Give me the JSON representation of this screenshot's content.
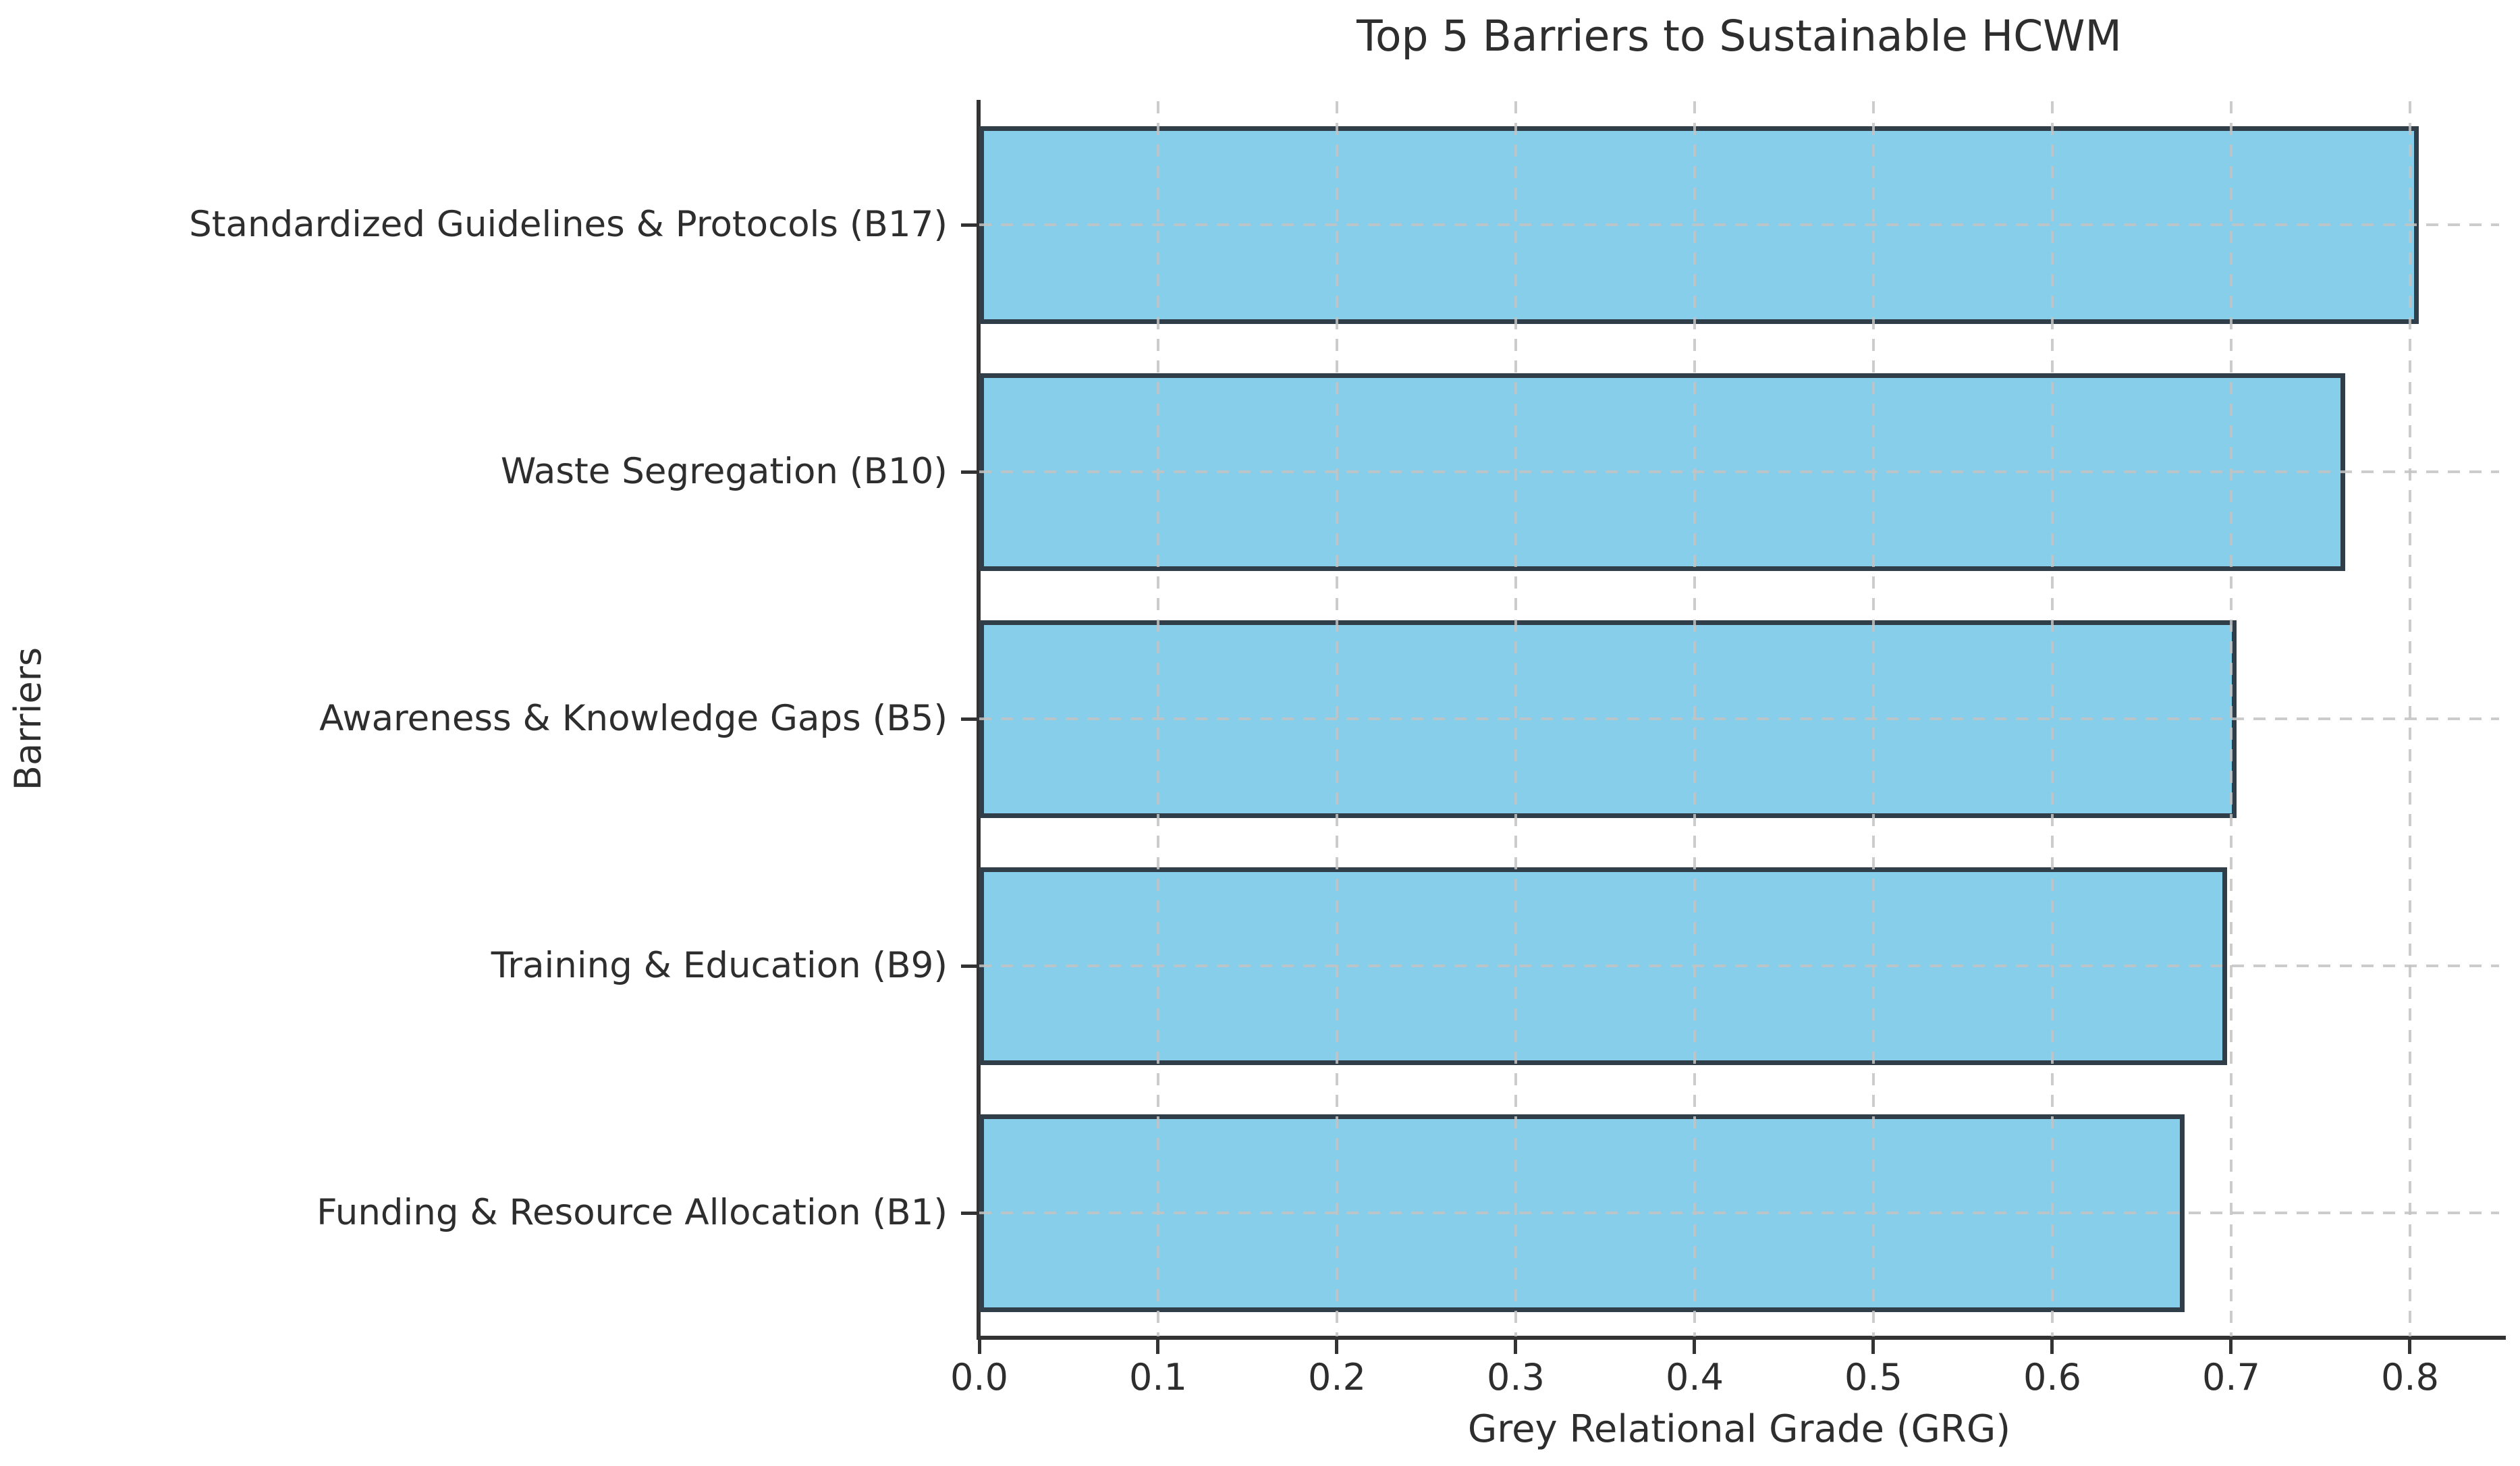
{
  "chart_data": {
    "type": "bar",
    "orientation": "horizontal",
    "title": "Top 5 Barriers to Sustainable HCWM",
    "xlabel": "Grey Relational Grade (GRG)",
    "ylabel": "Barriers",
    "categories": [
      "Standardized Guidelines & Protocols (B17)",
      "Waste Segregation (B10)",
      "Awareness & Knowledge Gaps (B5)",
      "Training & Education (B9)",
      "Funding & Resource Allocation (B1)"
    ],
    "values": [
      0.805,
      0.764,
      0.703,
      0.698,
      0.674
    ],
    "xlim": [
      0,
      0.85
    ],
    "xticks": {
      "values": [
        0.0,
        0.1,
        0.2,
        0.3,
        0.4,
        0.5,
        0.6,
        0.7,
        0.8
      ],
      "labels": [
        "0.0",
        "0.1",
        "0.2",
        "0.3",
        "0.4",
        "0.5",
        "0.6",
        "0.7",
        "0.8"
      ]
    },
    "grid": {
      "x": true,
      "y": true,
      "style": "dashed",
      "color": "#c3c3c3"
    },
    "legend": "none",
    "bar_color": "#87CEEB",
    "bar_edge_color": "#2f3e48",
    "background_color": "#ffffff",
    "text_color": "#2e2e2e"
  }
}
